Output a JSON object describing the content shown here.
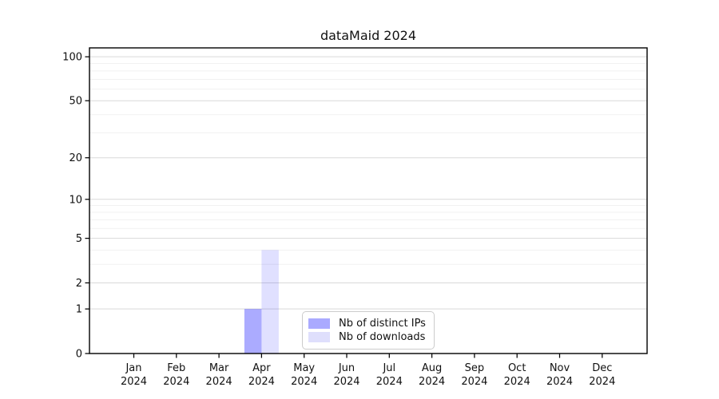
{
  "figure": {
    "background": "#ffffff"
  },
  "chart_data": {
    "type": "bar",
    "title": "dataMaid 2024",
    "categories": [
      "Jan 2024",
      "Feb 2024",
      "Mar 2024",
      "Apr 2024",
      "May 2024",
      "Jun 2024",
      "Jul 2024",
      "Aug 2024",
      "Sep 2024",
      "Oct 2024",
      "Nov 2024",
      "Dec 2024"
    ],
    "series": [
      {
        "name": "Nb of distinct IPs",
        "color": "#aaaaff",
        "fill": "rgba(0,0,255,0.33)",
        "values": [
          0,
          0,
          0,
          1,
          0,
          0,
          0,
          0,
          0,
          0,
          0,
          0
        ]
      },
      {
        "name": "Nb of downloads",
        "color": "#dfdffc",
        "fill": "rgba(0,0,255,0.12)",
        "values": [
          0,
          0,
          0,
          4,
          0,
          0,
          0,
          0,
          0,
          0,
          0,
          0
        ]
      }
    ],
    "xlabel": "",
    "ylabel": "",
    "yscale": "log1p",
    "ylim": [
      0,
      115
    ],
    "y_tick_values": [
      0,
      1,
      2,
      5,
      10,
      20,
      50,
      100
    ],
    "y_major_gridlines": [
      1,
      2,
      5,
      10,
      20,
      50,
      100
    ],
    "y_minor_gridlines": [
      3,
      4,
      6,
      7,
      8,
      9,
      30,
      40,
      60,
      70,
      80,
      90
    ],
    "grid": "horizontal",
    "legend_position": "inside-bottom-center",
    "colors": {
      "grid_major": "#d9d9d9",
      "grid_minor": "#f1f1f1",
      "axis": "#000000",
      "tick_label": "#111111",
      "plot_background": "#ffffff"
    }
  }
}
